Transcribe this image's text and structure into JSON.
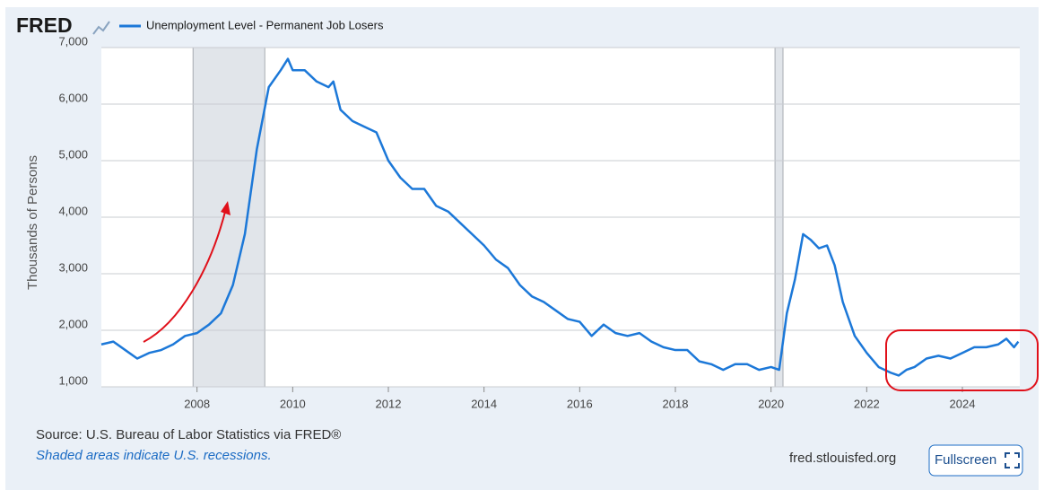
{
  "chart_data": {
    "type": "line",
    "logo": "FRED",
    "y_label": "Thousands of Persons",
    "source": "Source: U.S. Bureau of Labor Statistics via FRED®",
    "note": "Shaded areas indicate U.S. recessions.",
    "website": "fred.stlouisfed.org",
    "button": "Fullscreen",
    "x": [
      2006.0,
      2006.25,
      2006.5,
      2006.75,
      2007.0,
      2007.25,
      2007.5,
      2007.75,
      2008.0,
      2008.25,
      2008.5,
      2008.75,
      2009.0,
      2009.25,
      2009.5,
      2009.75,
      2009.9,
      2010.0,
      2010.25,
      2010.5,
      2010.75,
      2010.85,
      2011.0,
      2011.25,
      2011.5,
      2011.75,
      2012.0,
      2012.25,
      2012.5,
      2012.75,
      2013.0,
      2013.25,
      2013.5,
      2013.75,
      2014.0,
      2014.25,
      2014.5,
      2014.75,
      2015.0,
      2015.25,
      2015.5,
      2015.75,
      2016.0,
      2016.25,
      2016.5,
      2016.75,
      2017.0,
      2017.25,
      2017.5,
      2017.75,
      2018.0,
      2018.25,
      2018.5,
      2018.75,
      2019.0,
      2019.25,
      2019.5,
      2019.75,
      2020.0,
      2020.17,
      2020.33,
      2020.5,
      2020.67,
      2020.83,
      2021.0,
      2021.17,
      2021.33,
      2021.5,
      2021.75,
      2022.0,
      2022.25,
      2022.5,
      2022.67,
      2022.83,
      2023.0,
      2023.25,
      2023.5,
      2023.75,
      2024.0,
      2024.25,
      2024.5,
      2024.75,
      2024.92,
      2025.08,
      2025.17
    ],
    "series": [
      {
        "name": "Unemployment Level - Permanent Job Losers",
        "color": "#1c78d8",
        "values": [
          1750,
          1800,
          1650,
          1500,
          1600,
          1650,
          1750,
          1900,
          1950,
          2100,
          2300,
          2800,
          3700,
          5200,
          6300,
          6600,
          6800,
          6600,
          6600,
          6400,
          6300,
          6400,
          5900,
          5700,
          5600,
          5500,
          5000,
          4700,
          4500,
          4500,
          4200,
          4100,
          3900,
          3700,
          3500,
          3250,
          3100,
          2800,
          2600,
          2500,
          2350,
          2200,
          2150,
          1900,
          2100,
          1950,
          1900,
          1950,
          1800,
          1700,
          1650,
          1650,
          1450,
          1400,
          1300,
          1400,
          1400,
          1300,
          1350,
          1300,
          2300,
          2900,
          3700,
          3600,
          3450,
          3500,
          3150,
          2500,
          1900,
          1600,
          1350,
          1250,
          1200,
          1300,
          1350,
          1500,
          1550,
          1500,
          1600,
          1700,
          1700,
          1750,
          1850,
          1700,
          1800
        ]
      }
    ],
    "recessions": [
      [
        2007.917,
        2009.417
      ],
      [
        2020.083,
        2020.25
      ]
    ],
    "recession_color": "#e1e5ea",
    "xlim": [
      2006.0,
      2025.2
    ],
    "xticks": [
      2008,
      2010,
      2012,
      2014,
      2016,
      2018,
      2020,
      2022,
      2024
    ],
    "ylim": [
      1000,
      7000
    ],
    "yticks": [
      {
        "value": 1000,
        "label": "1,000"
      },
      {
        "value": 2000,
        "label": "2,000"
      },
      {
        "value": 3000,
        "label": "3,000"
      },
      {
        "value": 4000,
        "label": "4,000"
      },
      {
        "value": 5000,
        "label": "5,000"
      },
      {
        "value": 6000,
        "label": "6,000"
      },
      {
        "value": 7000,
        "label": "7,000"
      }
    ],
    "grid": true
  }
}
